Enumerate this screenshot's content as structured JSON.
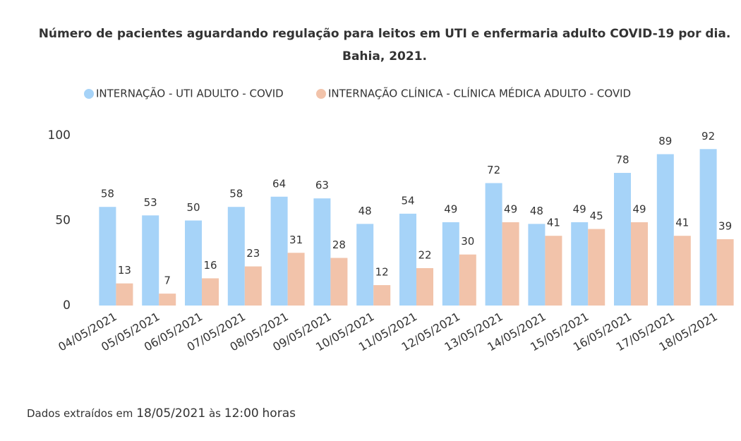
{
  "chart_data": {
    "type": "bar",
    "title": [
      "Número de pacientes aguardando regulação para leitos em UTI e enfermaria adulto COVID-19 por dia.",
      "Bahia, 2021."
    ],
    "categories": [
      "04/05/2021",
      "05/05/2021",
      "06/05/2021",
      "07/05/2021",
      "08/05/2021",
      "09/05/2021",
      "10/05/2021",
      "11/05/2021",
      "12/05/2021",
      "13/05/2021",
      "14/05/2021",
      "15/05/2021",
      "16/05/2021",
      "17/05/2021",
      "18/05/2021"
    ],
    "series": [
      {
        "name": "INTERNAÇÃO - UTI ADULTO - COVID",
        "color": "#a6d3f8",
        "values": [
          58,
          53,
          50,
          58,
          64,
          63,
          48,
          54,
          49,
          72,
          48,
          49,
          78,
          89,
          92
        ]
      },
      {
        "name": "INTERNAÇÃO CLÍNICA - CLÍNICA MÉDICA ADULTO - COVID",
        "color": "#f2c3aa",
        "values": [
          13,
          7,
          16,
          23,
          31,
          28,
          12,
          22,
          30,
          49,
          41,
          45,
          49,
          41,
          39
        ]
      }
    ],
    "ylim": [
      0,
      100
    ],
    "yticks": [
      0,
      50,
      100
    ],
    "grid": false,
    "legend": "top"
  },
  "footer": [
    "Dados extraídos em",
    "18/05/2021",
    "às",
    "12:00",
    "horas"
  ]
}
